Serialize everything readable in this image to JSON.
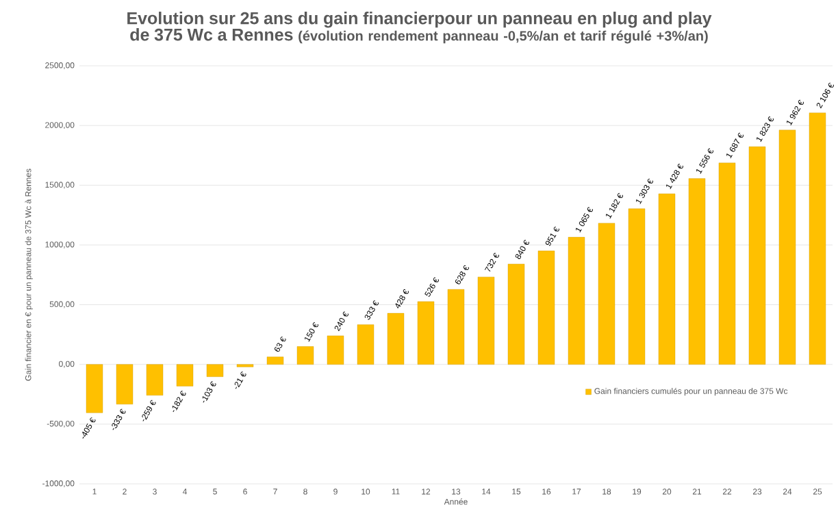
{
  "chart_data": {
    "type": "bar",
    "title": "Evolution sur 25 ans du gain financierpour un panneau en plug and play de 375 Wc a Rennes",
    "subtitle": "(évolution rendement panneau -0,5%/an et tarif régulé +3%/an)",
    "xlabel": "Année",
    "ylabel": "Gain financier en € pour un panneau de 375 Wc à Rennes",
    "categories": [
      "1",
      "2",
      "3",
      "4",
      "5",
      "6",
      "7",
      "8",
      "9",
      "10",
      "11",
      "12",
      "13",
      "14",
      "15",
      "16",
      "17",
      "18",
      "19",
      "20",
      "21",
      "22",
      "23",
      "24",
      "25"
    ],
    "series": [
      {
        "name": "Gain financiers cumulés pour un panneau de 375 Wc",
        "color": "#ffc000",
        "values": [
          -405,
          -333,
          -259,
          -182,
          -103,
          -21,
          63,
          150,
          240,
          333,
          428,
          526,
          628,
          732,
          840,
          951,
          1065,
          1182,
          1303,
          1428,
          1556,
          1687,
          1823,
          1962,
          2106
        ],
        "value_labels": [
          "-405 €",
          "-333 €",
          "-259 €",
          "-182 €",
          "-103 €",
          "-21 €",
          "63 €",
          "150 €",
          "240 €",
          "333 €",
          "428 €",
          "526 €",
          "628 €",
          "732 €",
          "840 €",
          "951 €",
          "1 065 €",
          "1 182 €",
          "1 303 €",
          "1 428 €",
          "1 556 €",
          "1 687 €",
          "1 823 €",
          "1 962 €",
          "2 106 €"
        ]
      }
    ],
    "ylim": [
      -1000,
      2500
    ],
    "yticks": [
      {
        "value": -1000,
        "label": "-1000,00"
      },
      {
        "value": -500,
        "label": "-500,00"
      },
      {
        "value": 0,
        "label": "0,00"
      },
      {
        "value": 500,
        "label": "500,00"
      },
      {
        "value": 1000,
        "label": "1000,00"
      },
      {
        "value": 1500,
        "label": "1500,00"
      },
      {
        "value": 2000,
        "label": "2000,00"
      },
      {
        "value": 2500,
        "label": "2500,00"
      }
    ],
    "grid": "y",
    "legend": "right"
  }
}
